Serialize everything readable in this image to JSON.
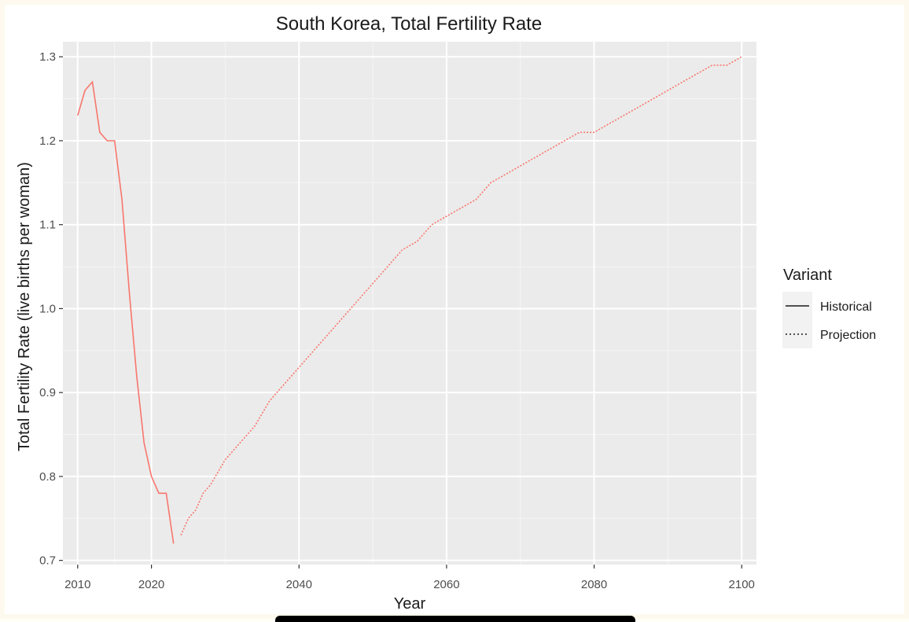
{
  "chart_data": {
    "type": "line",
    "title": "South Korea, Total Fertility Rate",
    "xlabel": "Year",
    "ylabel": "Total Fertility Rate (live births per woman)",
    "xlim": [
      2008,
      2102
    ],
    "ylim": [
      0.695,
      1.318
    ],
    "x_ticks": [
      2010,
      2020,
      2040,
      2060,
      2080,
      2100
    ],
    "y_ticks": [
      0.7,
      0.8,
      0.9,
      1.0,
      1.1,
      1.2,
      1.3
    ],
    "y_tick_labels": [
      "0.7",
      "0.8",
      "0.9",
      "1.0",
      "1.1",
      "1.2",
      "1.3"
    ],
    "x_minor": [
      2015,
      2030,
      2050,
      2070,
      2090
    ],
    "grid": true,
    "line_color": "#f8766d",
    "legend": {
      "title": "Variant",
      "position": "right",
      "entries": [
        {
          "label": "Historical",
          "linetype": "solid"
        },
        {
          "label": "Projection",
          "linetype": "dotted"
        }
      ]
    },
    "series": [
      {
        "name": "Historical",
        "linetype": "solid",
        "x": [
          2010,
          2011,
          2012,
          2013,
          2014,
          2015,
          2016,
          2017,
          2018,
          2019,
          2020,
          2021,
          2022,
          2023
        ],
        "y": [
          1.23,
          1.26,
          1.27,
          1.21,
          1.2,
          1.2,
          1.13,
          1.02,
          0.92,
          0.84,
          0.8,
          0.78,
          0.78,
          0.72
        ]
      },
      {
        "name": "Projection",
        "linetype": "dotted",
        "x": [
          2024,
          2025,
          2026,
          2027,
          2028,
          2030,
          2032,
          2034,
          2036,
          2038,
          2040,
          2042,
          2044,
          2046,
          2048,
          2050,
          2052,
          2054,
          2056,
          2058,
          2060,
          2062,
          2064,
          2066,
          2068,
          2070,
          2072,
          2074,
          2076,
          2078,
          2080,
          2082,
          2084,
          2086,
          2088,
          2090,
          2092,
          2094,
          2096,
          2098,
          2100
        ],
        "y": [
          0.73,
          0.75,
          0.76,
          0.78,
          0.79,
          0.82,
          0.84,
          0.86,
          0.89,
          0.91,
          0.93,
          0.95,
          0.97,
          0.99,
          1.01,
          1.03,
          1.05,
          1.07,
          1.08,
          1.1,
          1.11,
          1.12,
          1.13,
          1.15,
          1.16,
          1.17,
          1.18,
          1.19,
          1.2,
          1.21,
          1.21,
          1.22,
          1.23,
          1.24,
          1.25,
          1.26,
          1.27,
          1.28,
          1.29,
          1.29,
          1.3
        ]
      }
    ]
  }
}
